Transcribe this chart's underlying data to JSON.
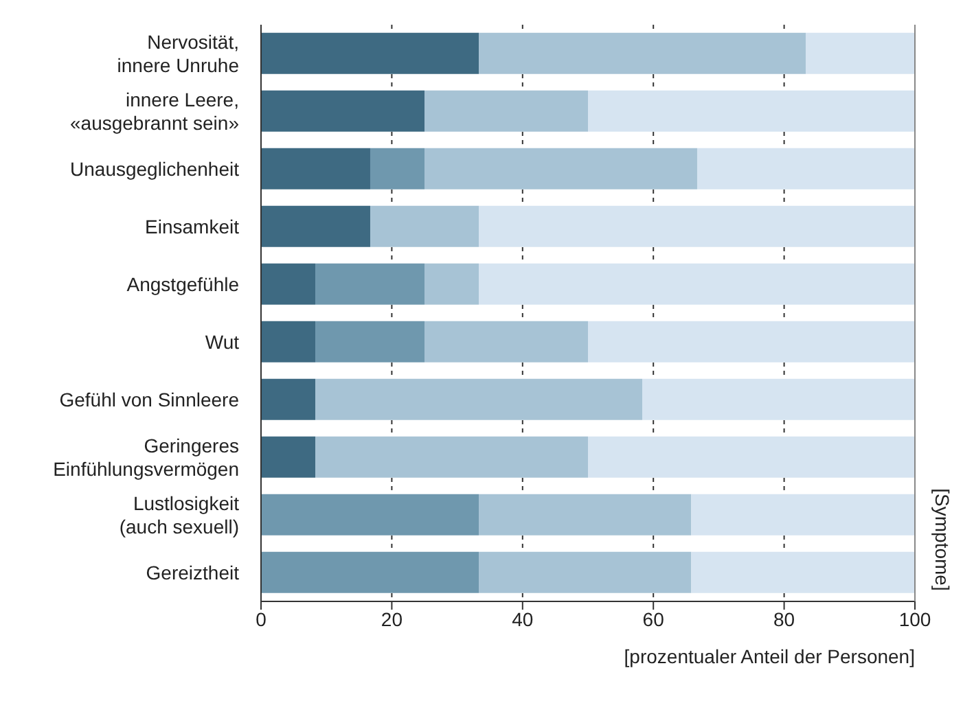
{
  "chart_data": {
    "type": "bar",
    "orientation": "horizontal",
    "stacked": true,
    "xlabel": "[prozentualer Anteil der Personen]",
    "ylabel": "[Symptome]",
    "categories": [
      "Nervosität, innere Unruhe",
      "innere Leere, «ausgebrannt sein»",
      "Unausgeglichenheit",
      "Einsamkeit",
      "Angstgefühle",
      "Wut",
      "Gefühl von Sinnleere",
      "Geringeres Einfühlungsvermögen",
      "Lustlosigkeit (auch sexuell)",
      "Gereiztheit"
    ],
    "series": [
      {
        "color": "#3e6a82",
        "values": [
          33.3,
          25,
          16.7,
          16.7,
          8.3,
          8.3,
          8.3,
          8.3,
          0,
          0
        ]
      },
      {
        "color": "#6f98ae",
        "values": [
          0,
          0,
          8.3,
          0,
          16.7,
          16.7,
          0,
          0,
          33.3,
          33.3
        ]
      },
      {
        "color": "#a7c3d5",
        "values": [
          50,
          25,
          41.7,
          16.6,
          8.3,
          25,
          50,
          41.7,
          32.5,
          32.5
        ]
      },
      {
        "color": "#d6e4f1",
        "values": [
          16.7,
          50,
          33.3,
          66.7,
          66.7,
          50,
          41.7,
          50,
          34.2,
          34.2
        ]
      }
    ],
    "xlim": [
      0,
      100
    ],
    "xticks": [
      0,
      20,
      40,
      60,
      80,
      100
    ],
    "grid": "x"
  }
}
